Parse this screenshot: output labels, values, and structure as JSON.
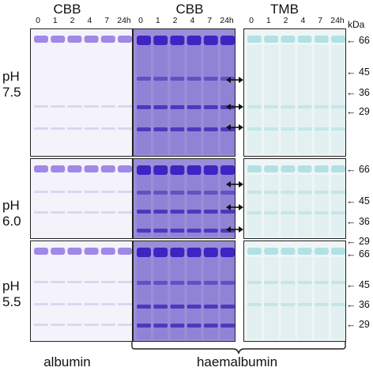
{
  "column_titles": [
    "CBB",
    "CBB",
    "TMB"
  ],
  "lane_labels": [
    "0",
    "1",
    "2",
    "4",
    "7",
    "24h"
  ],
  "ph_labels": [
    {
      "prefix": "pH",
      "value": "7.5"
    },
    {
      "prefix": "pH",
      "value": "6.0"
    },
    {
      "prefix": "pH",
      "value": "5.5"
    }
  ],
  "kda_unit": "kDa",
  "markers": [
    "66",
    "45",
    "36",
    "29"
  ],
  "bottom_labels": {
    "left": "albumin",
    "right": "haemalbumin"
  },
  "colors": {
    "cbb_light": "#f4f3fb",
    "cbb_dark": "#9a8ed8",
    "cbb_band": "#5a3ed0",
    "tmb_bg": "#eef5f5",
    "tmb_band": "#7fd0d6"
  }
}
